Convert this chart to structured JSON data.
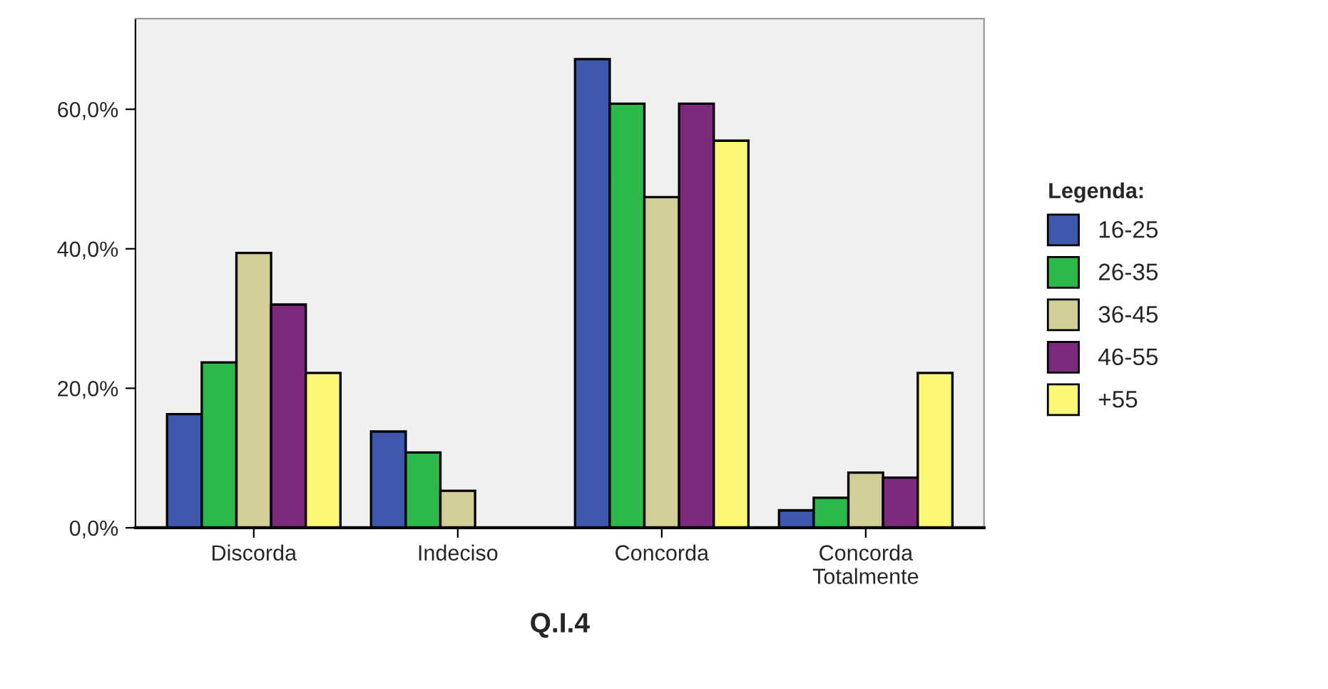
{
  "chart_data": {
    "type": "bar",
    "xlabel": "Q.I.4",
    "legend_title": "Legenda:",
    "categories": [
      "Discorda",
      "Indeciso",
      "Concorda",
      "Concorda\nTotalmente"
    ],
    "series": [
      {
        "name": "16-25",
        "color": "#3e58ac",
        "values": [
          16.3,
          13.8,
          67.2,
          2.5
        ]
      },
      {
        "name": "26-35",
        "color": "#2db84a",
        "values": [
          23.7,
          10.8,
          60.8,
          4.3
        ]
      },
      {
        "name": "36-45",
        "color": "#d3ce97",
        "values": [
          39.4,
          5.3,
          47.4,
          7.9
        ]
      },
      {
        "name": "46-55",
        "color": "#7d2a7d",
        "values": [
          32.0,
          null,
          60.8,
          7.2
        ]
      },
      {
        "name": "+55",
        "color": "#fbf776",
        "values": [
          22.2,
          null,
          55.5,
          22.2
        ]
      }
    ],
    "ylim": [
      0,
      73
    ],
    "yticks": [
      {
        "value": 0,
        "label": "0,0%"
      },
      {
        "value": 20,
        "label": "20,0%"
      },
      {
        "value": 40,
        "label": "40,0%"
      },
      {
        "value": 60,
        "label": "60,0%"
      }
    ],
    "grid": false,
    "legend": "right"
  }
}
